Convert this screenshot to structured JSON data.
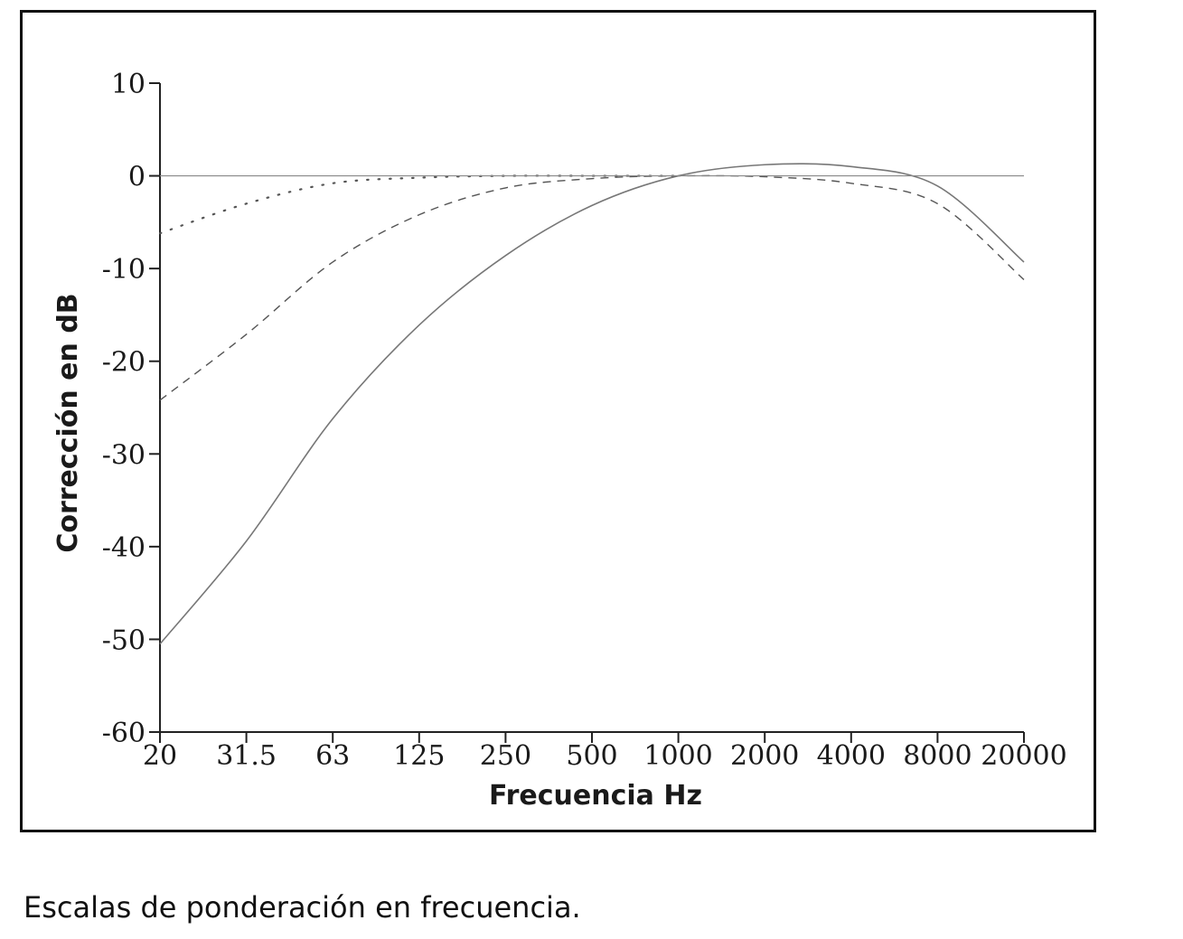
{
  "caption": "Escalas de ponderación en frecuencia.",
  "chart_data": {
    "type": "line",
    "title": "",
    "xlabel": "Frecuencia Hz",
    "ylabel": "Corrección en dB",
    "x_scale": "log",
    "x_ticks": [
      "20",
      "31.5",
      "63",
      "125",
      "250",
      "500",
      "1000",
      "2000",
      "4000",
      "8000",
      "20000"
    ],
    "y_ticks": [
      "10",
      "0",
      "-10",
      "-20",
      "-30",
      "-40",
      "-50",
      "-60"
    ],
    "ylim": [
      -60,
      10
    ],
    "grid": false,
    "legend": "none",
    "colors": {
      "axis": "#222222",
      "solid": "#777777",
      "dashed": "#555555",
      "dotted": "#555555",
      "zero": "#888888"
    },
    "series": [
      {
        "style": "solid",
        "x": [
          "20",
          "31.5",
          "63",
          "125",
          "250",
          "500",
          "1000",
          "2000",
          "4000",
          "8000",
          "20000"
        ],
        "values": [
          -50.5,
          -39.4,
          -26.2,
          -16.1,
          -8.6,
          -3.2,
          0,
          1.2,
          1.0,
          -1.1,
          -9.3
        ]
      },
      {
        "style": "dashed",
        "x": [
          "20",
          "31.5",
          "63",
          "125",
          "250",
          "500",
          "1000",
          "2000",
          "4000",
          "8000",
          "20000"
        ],
        "values": [
          -24.2,
          -17.1,
          -9.3,
          -4.2,
          -1.3,
          -0.3,
          0,
          -0.1,
          -0.8,
          -3.0,
          -11.2
        ]
      },
      {
        "style": "dotted",
        "x": [
          "20",
          "31.5",
          "63",
          "125",
          "250",
          "500",
          "1000"
        ],
        "values": [
          -6.2,
          -3.0,
          -0.8,
          -0.2,
          0,
          0,
          0
        ]
      },
      {
        "style": "zero",
        "x": [
          "20",
          "20000"
        ],
        "values": [
          0,
          0
        ]
      }
    ]
  }
}
